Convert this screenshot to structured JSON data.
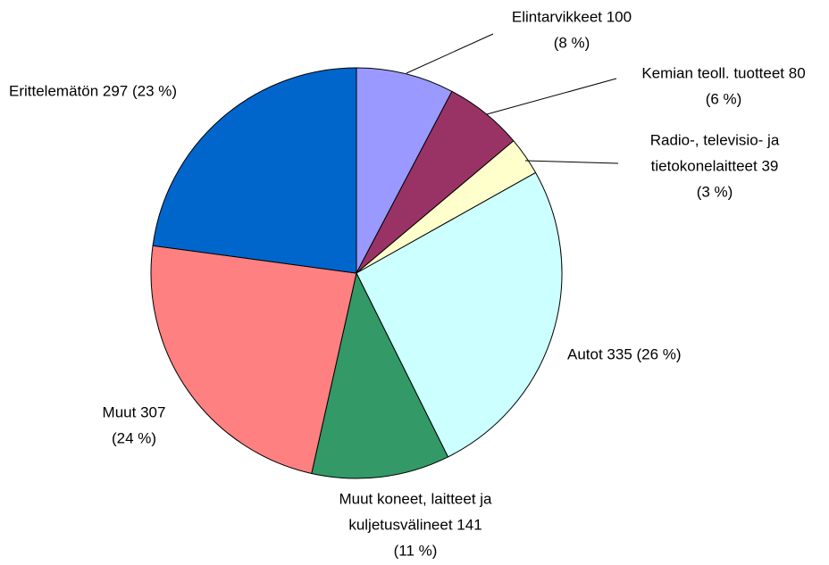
{
  "chart_data": {
    "type": "pie",
    "labels": [
      [
        "Elintarvikkeet 100",
        "(8 %)"
      ],
      [
        "Kemian teoll. tuotteet 80",
        "(6 %)"
      ],
      [
        "Radio-, televisio- ja",
        "tietokonelaitteet 39",
        "(3 %)"
      ],
      [
        "Autot 335 (26 %)"
      ],
      [
        "Muut  koneet, laitteet ja",
        "kuljetusvälineet 141",
        "(11 %)"
      ],
      [
        "Muut 307",
        "(24 %)"
      ],
      [
        "Erittelemätön 297 (23 %)"
      ]
    ],
    "values": [
      100,
      80,
      39,
      335,
      141,
      307,
      297
    ],
    "colors": [
      "#9999ff",
      "#993366",
      "#ffffcc",
      "#ccffff",
      "#339966",
      "#ff8080",
      "#0066cc"
    ]
  }
}
